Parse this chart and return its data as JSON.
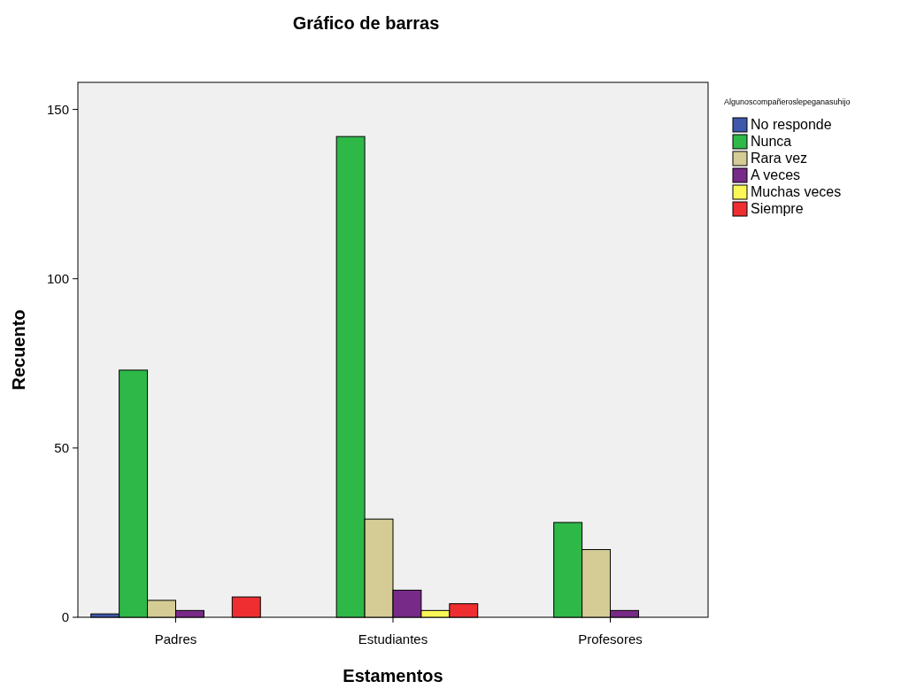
{
  "chart_data": {
    "type": "bar",
    "title": "Gráfico de barras",
    "xlabel": "Estamentos",
    "ylabel": "Recuento",
    "legend_title": "Algunoscompañeroslepeganasuhijo",
    "categories": [
      "Padres",
      "Estudiantes",
      "Profesores"
    ],
    "series": [
      {
        "name": "No responde",
        "color": "#3e58ac",
        "values": [
          1,
          0,
          0
        ]
      },
      {
        "name": "Nunca",
        "color": "#2eb848",
        "values": [
          73,
          142,
          28
        ]
      },
      {
        "name": "Rara vez",
        "color": "#d4cc94",
        "values": [
          5,
          29,
          20
        ]
      },
      {
        "name": "A veces",
        "color": "#782a88",
        "values": [
          2,
          8,
          2
        ]
      },
      {
        "name": "Muchas veces",
        "color": "#fbf756",
        "values": [
          0,
          2,
          0
        ]
      },
      {
        "name": "Siempre",
        "color": "#ee2e30",
        "values": [
          6,
          4,
          0
        ]
      }
    ],
    "ylim": [
      0,
      158
    ],
    "yticks": [
      0,
      50,
      100,
      150
    ],
    "grid": false,
    "legend": "top right"
  }
}
